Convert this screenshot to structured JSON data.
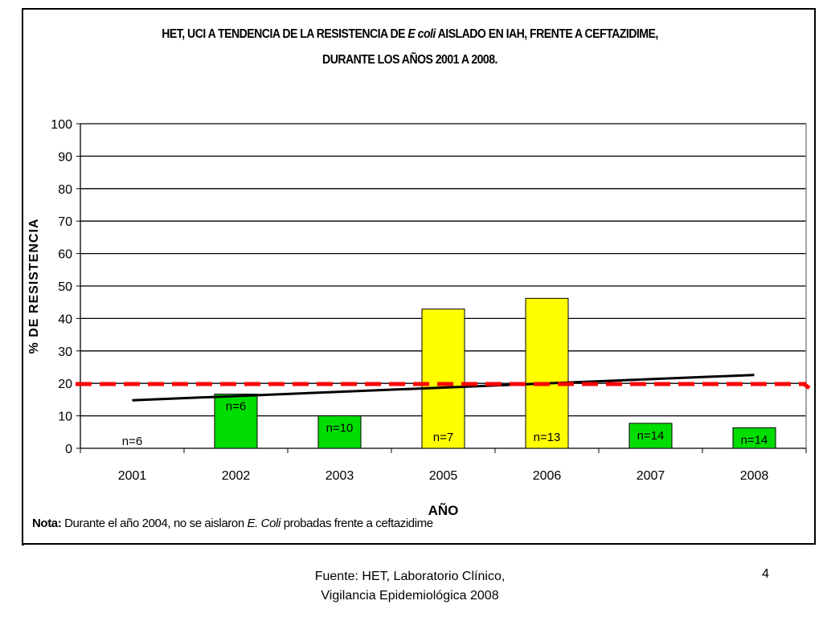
{
  "chart_data": {
    "type": "bar",
    "title": {
      "line1_before": "HET, UCI A TENDENCIA DE LA RESISTENCIA DE ",
      "line1_italic": "E coli",
      "line1_after": " AISLADO EN IAH, FRENTE A CEFTAZIDIME,",
      "line2": "DURANTE LOS AÑOS 2001 A 2008."
    },
    "xlabel": "AÑO",
    "ylabel": "% DE RESISTENCIA",
    "ylim": [
      0,
      100
    ],
    "yticks": [
      0,
      10,
      20,
      30,
      40,
      50,
      60,
      70,
      80,
      90,
      100
    ],
    "grid": true,
    "categories": [
      "2001",
      "2002",
      "2003",
      "2005",
      "2006",
      "2007",
      "2008"
    ],
    "values": [
      0,
      16.7,
      10,
      42.9,
      46.2,
      7.7,
      6.3
    ],
    "bar_colors": [
      "#00dd00",
      "#00dd00",
      "#00dd00",
      "#ffff00",
      "#ffff00",
      "#00dd00",
      "#00dd00"
    ],
    "bar_labels": [
      "n=6",
      "n=6",
      "n=10",
      "n=7",
      "n=13",
      "n=14",
      "n=14"
    ],
    "trend_line": {
      "color": "#000000",
      "start": 14.8,
      "end": 22.6
    },
    "reference_line": {
      "value": 19.8,
      "color": "#ff0000",
      "style": "dashed"
    }
  },
  "note": {
    "label": "Nota:",
    "text_before": " Durante el año 2004, no se aislaron ",
    "italic": "E. Coli",
    "text_after": " probadas frente a ceftazidime"
  },
  "footer": {
    "source_line1": "Fuente: HET, Laboratorio Clínico,",
    "source_line2": "Vigilancia Epidemiológica 2008",
    "page_number": "4"
  }
}
